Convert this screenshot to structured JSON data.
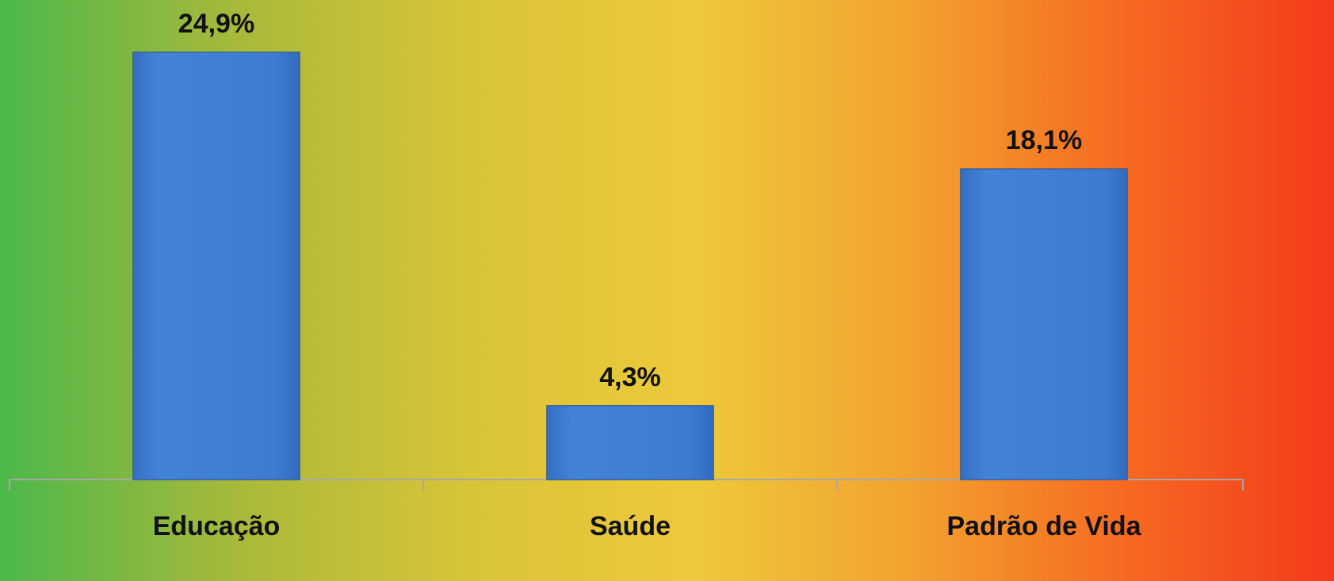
{
  "chart_data": {
    "type": "bar",
    "categories": [
      "Educação",
      "Saúde",
      "Padrão de Vida"
    ],
    "values": [
      24.9,
      4.3,
      18.1
    ],
    "value_labels": [
      "24,9%",
      "4,3%",
      "18,1%"
    ],
    "color": "#3c7dd6"
  }
}
